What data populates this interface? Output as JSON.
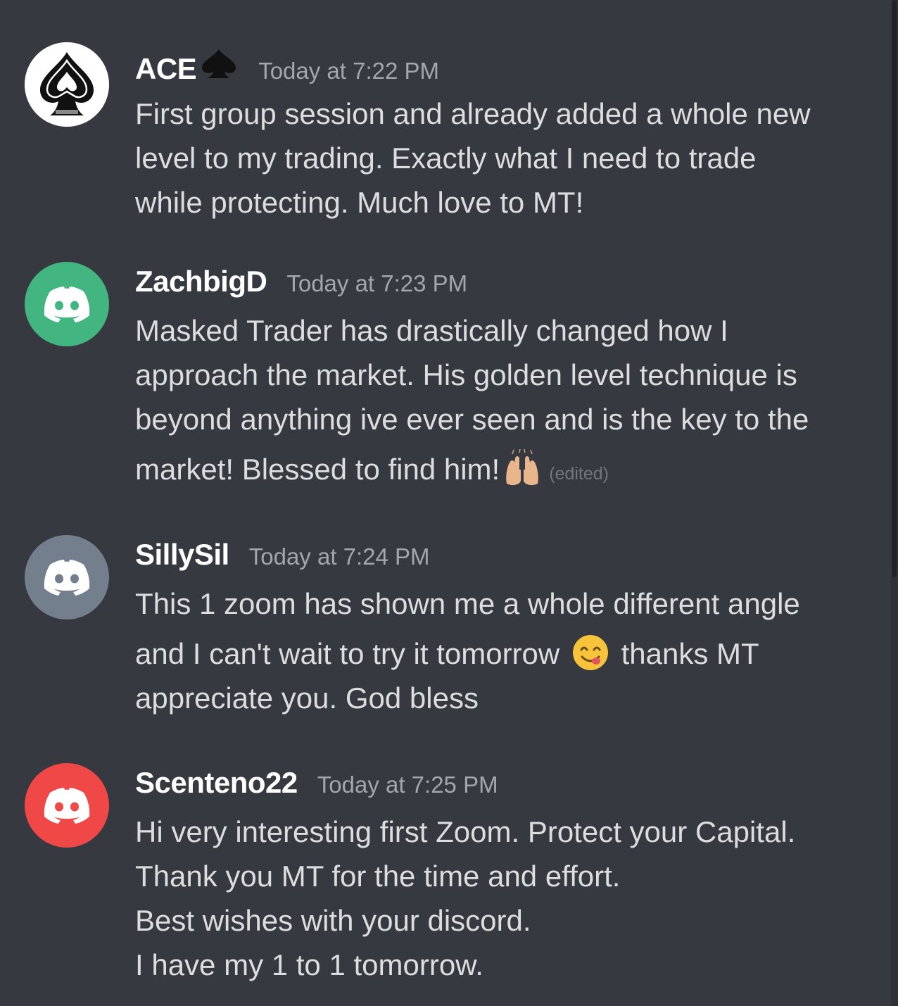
{
  "messages": [
    {
      "username": "ACE",
      "username_badge": "spade-icon",
      "timestamp": "Today at 7:22 PM",
      "avatar": {
        "type": "ace-of-spades",
        "color": "#ffffff"
      },
      "lines": [
        "First group session and already added a whole new",
        "level to my trading. Exactly what I need to trade",
        "while protecting. Much love to MT!"
      ]
    },
    {
      "username": "ZachbigD",
      "timestamp": "Today at 7:23 PM",
      "avatar": {
        "type": "discord",
        "color": "#43b581"
      },
      "lines": [
        "Masked Trader has drastically changed how I",
        "approach the market. His golden level technique is",
        "beyond anything ive ever seen and is the key to the"
      ],
      "last_line": "market! Blessed to find him!",
      "last_emoji": "raising-hands-emoji",
      "edited_label": "(edited)"
    },
    {
      "username": "SillySil",
      "timestamp": "Today at 7:24 PM",
      "avatar": {
        "type": "discord",
        "color": "#747f8d"
      },
      "line1": "This 1 zoom has shown me a whole different angle",
      "line2_before": "and I can't wait to try it tomorrow",
      "line2_emoji": "yum-face-emoji",
      "line2_after": "thanks MT",
      "line3": "appreciate you. God bless"
    },
    {
      "username": "Scenteno22",
      "timestamp": "Today at 7:25 PM",
      "avatar": {
        "type": "discord",
        "color": "#f04747"
      },
      "lines": [
        "Hi very interesting first Zoom. Protect your Capital.",
        "Thank you MT for the time and effort.",
        "Best wishes with your discord.",
        "I have my 1 to 1 tomorrow."
      ]
    }
  ]
}
